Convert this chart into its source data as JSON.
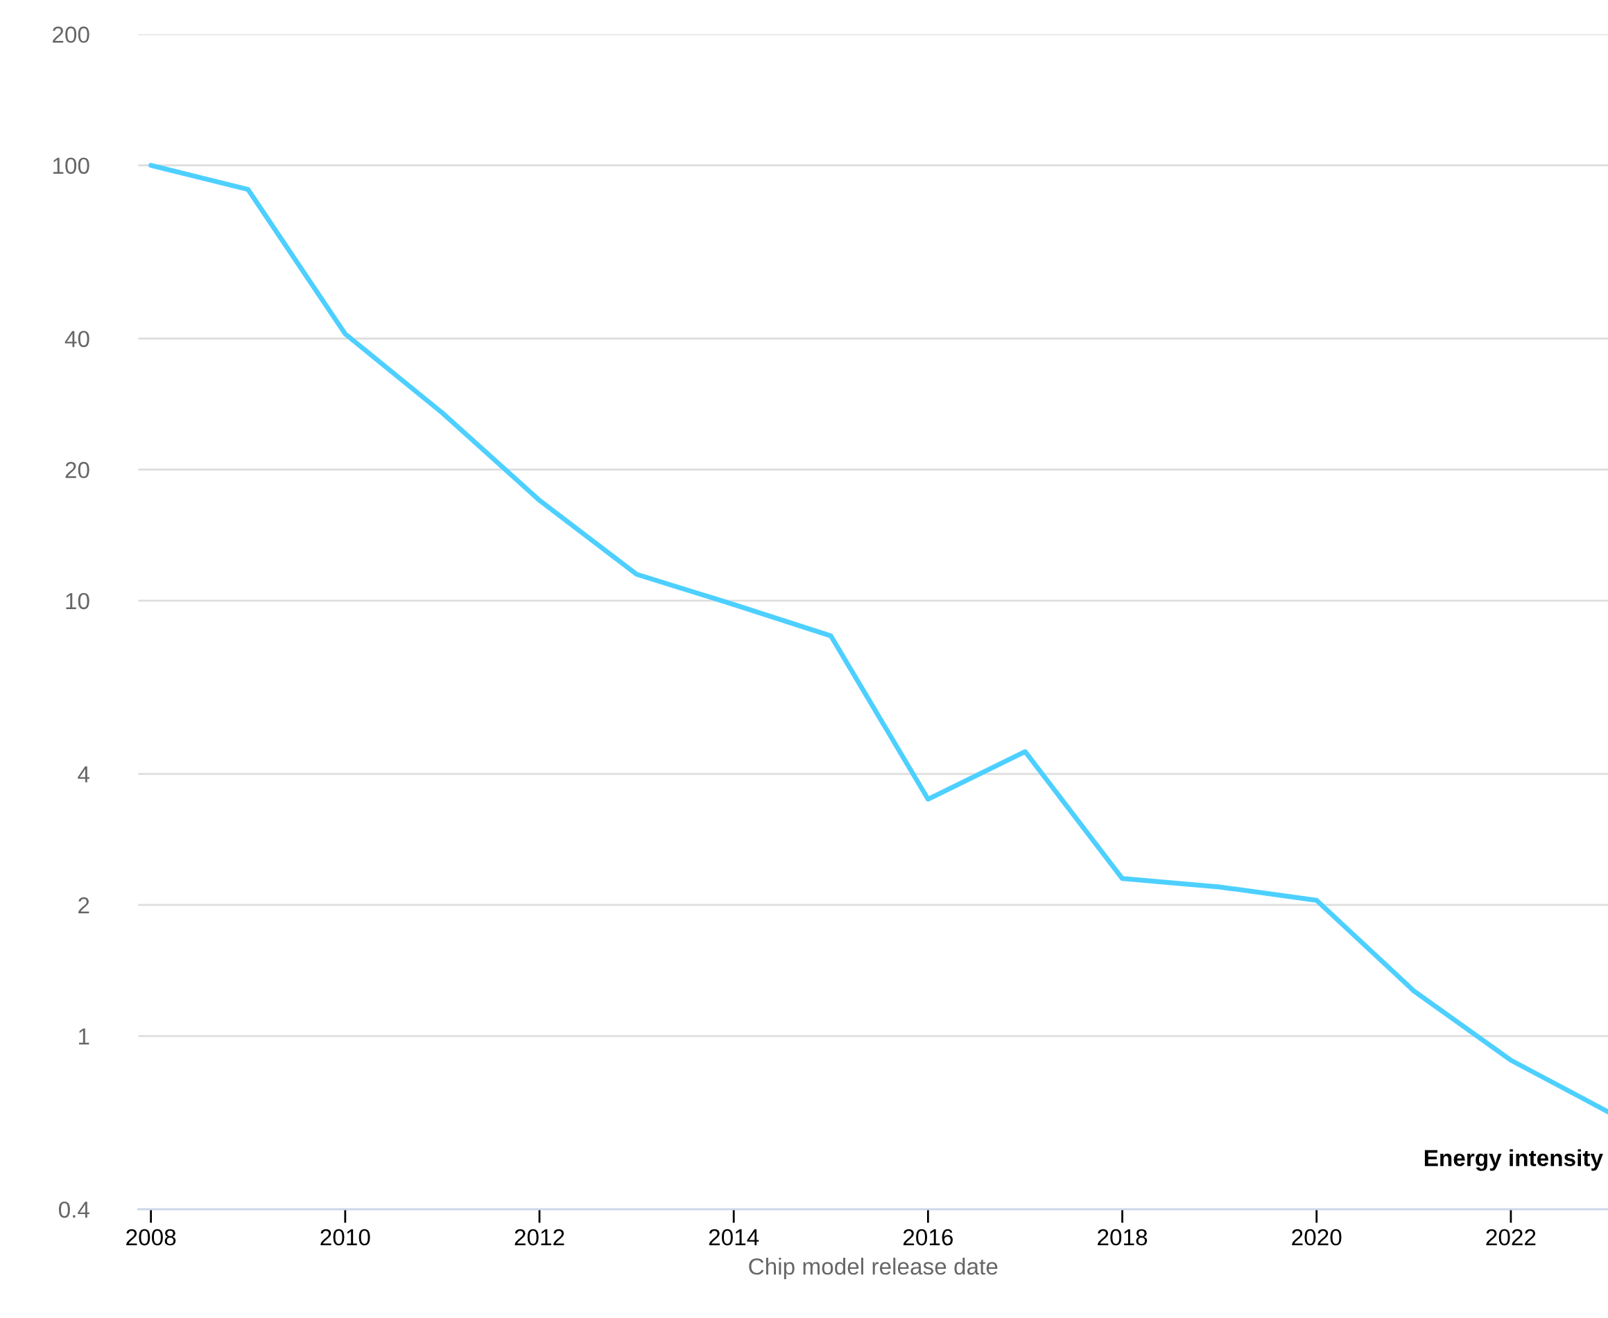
{
  "chart_data": {
    "type": "line",
    "xlabel": "Chip model release date",
    "x": [
      2008,
      2009,
      2010,
      2011,
      2012,
      2013,
      2014,
      2015,
      2016,
      2017,
      2018,
      2019,
      2020,
      2021,
      2022,
      2023
    ],
    "series": [
      {
        "name": "Energy intensity",
        "color": "#4dd0ff",
        "values": [
          100,
          88,
          41,
          27,
          17,
          11.5,
          9.8,
          8.3,
          3.5,
          4.5,
          2.3,
          2.2,
          2.05,
          1.27,
          0.88,
          0.67
        ]
      }
    ],
    "log": "y",
    "xlim": [
      2007.87,
      2023
    ],
    "ylim": [
      0.4,
      200
    ],
    "xticks": [
      2008,
      2010,
      2012,
      2014,
      2016,
      2018,
      2020,
      2022
    ],
    "yticks": [
      0.4,
      1,
      2,
      4,
      10,
      20,
      40,
      100,
      200
    ],
    "grid": "y",
    "line_style": "solid",
    "marker": "none"
  }
}
